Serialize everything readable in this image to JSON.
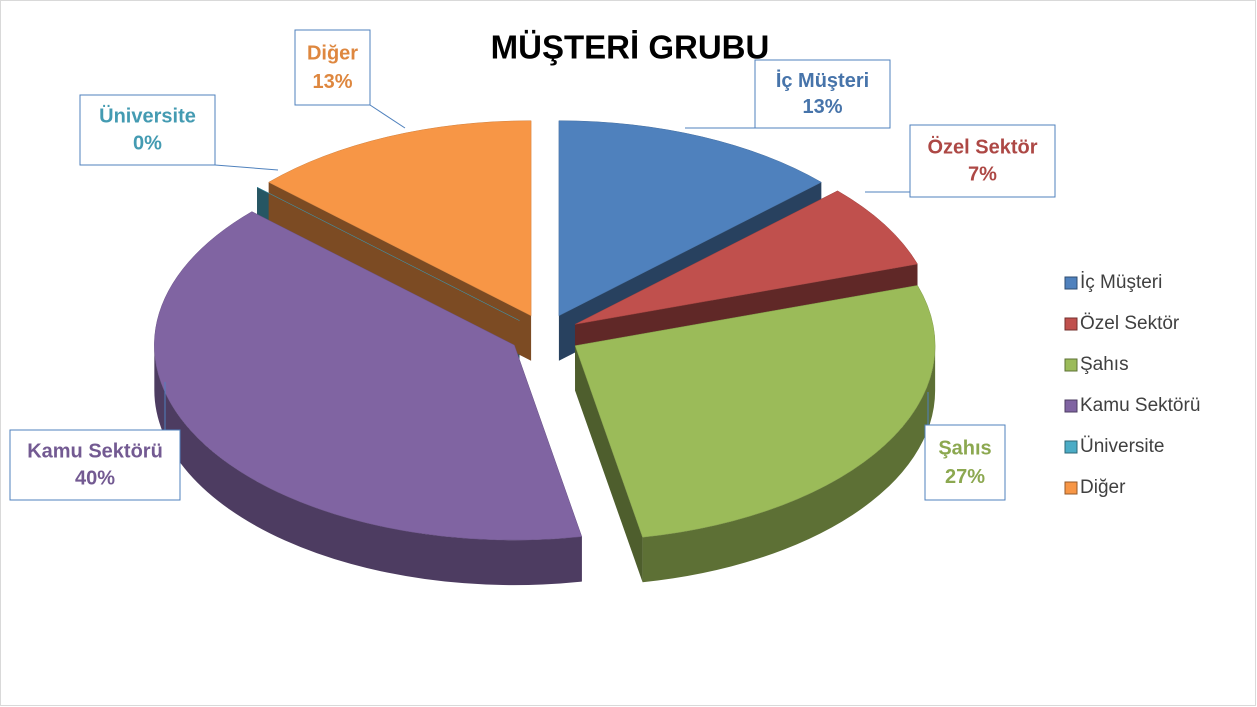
{
  "chart_data": {
    "type": "pie",
    "title": "MÜŞTERİ GRUBU",
    "categories": [
      "İç Müşteri",
      "Özel Sektör",
      "Şahıs",
      "Kamu Sektörü",
      "Üniversite",
      "Diğer"
    ],
    "values": [
      13,
      7,
      27,
      40,
      0,
      13
    ],
    "value_labels": [
      "13%",
      "7%",
      "27%",
      "40%",
      "0%",
      "13%"
    ],
    "colors": [
      "#4f81bd",
      "#c0504d",
      "#9bbb59",
      "#8064a2",
      "#4bacc6",
      "#f79646"
    ],
    "legend": "right",
    "exploded": true,
    "three_d": true
  }
}
